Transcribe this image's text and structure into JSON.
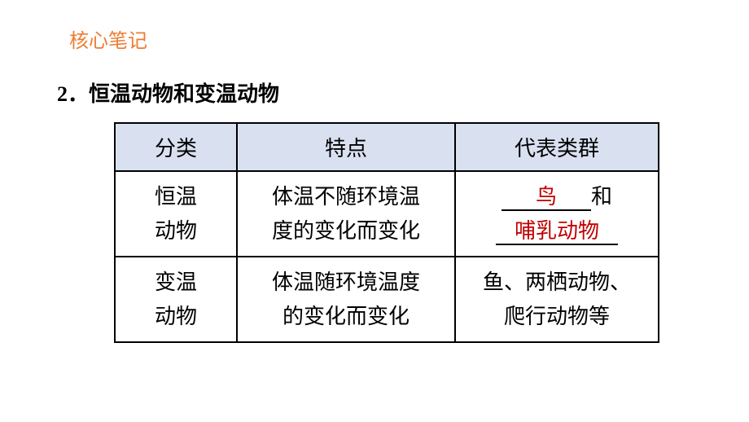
{
  "coreNotesLabel": "核心笔记",
  "sectionNumber": "2．",
  "sectionTitle": "恒温动物和变温动物",
  "table": {
    "headers": {
      "col1": "分类",
      "col2": "特点",
      "col3": "代表类群"
    },
    "rows": [
      {
        "category": "恒温动物",
        "categoryLine1": "恒温",
        "categoryLine2": "动物",
        "feature": "体温不随环境温度的变化而变化",
        "featureLine1": "体温不随环境温",
        "featureLine2": "度的变化而变化",
        "repBlank1": "鸟",
        "repAnd": "和",
        "repBlank2": "哺乳动物"
      },
      {
        "category": "变温动物",
        "categoryLine1": "变温",
        "categoryLine2": "动物",
        "feature": "体温随环境温度的变化而变化",
        "featureLine1": "体温随环境温度",
        "featureLine2": "的变化而变化",
        "representatives": "鱼、两栖动物、爬行动物等",
        "repLine1": "鱼、两栖动物、",
        "repLine2": "爬行动物等"
      }
    ]
  },
  "colors": {
    "accent": "#ed7d31",
    "headerBg": "#d9e1f1",
    "fillText": "#c00000",
    "border": "#000000",
    "background": "#ffffff"
  },
  "fonts": {
    "titleSize": 26,
    "cellSize": 26,
    "coreNotesSize": 24
  }
}
